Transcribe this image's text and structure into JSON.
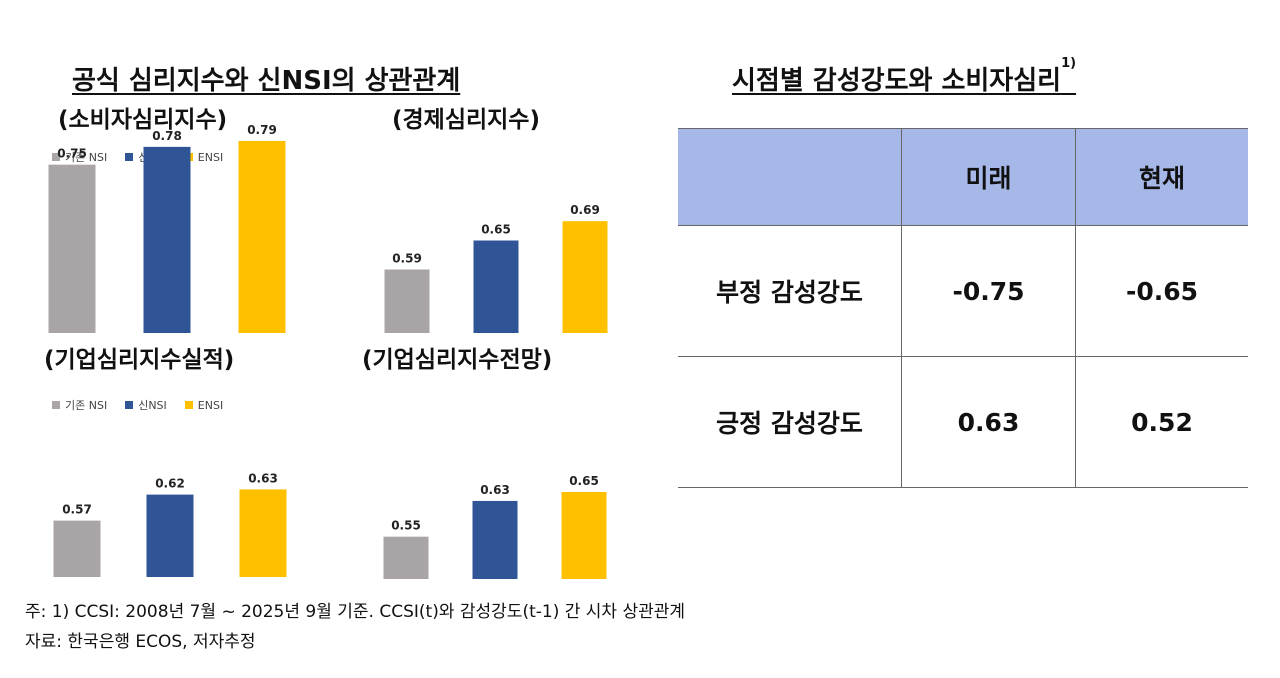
{
  "left_title": "공식 심리지수와 신NSI의 상관관계",
  "right_title": "시점별 감성강도와 소비자심리",
  "right_title_sup": "1)",
  "colors": {
    "legacy": "#a9a5a6",
    "new": "#2f5597",
    "ensi": "#ffc000",
    "header": "#a6b8e8"
  },
  "legend": [
    "기존 NSI",
    "신NSI",
    "ENSI"
  ],
  "chart_data": [
    {
      "type": "bar",
      "title": "(소비자심리지수)",
      "categories": [
        "기존 NSI",
        "신NSI",
        "ENSI"
      ],
      "values": [
        0.75,
        0.78,
        0.79
      ],
      "value_labels": [
        "0.75",
        "0.78",
        "0.79"
      ]
    },
    {
      "type": "bar",
      "title": "(경제심리지수)",
      "categories": [
        "기존 NSI",
        "신NSI",
        "ENSI"
      ],
      "values": [
        0.59,
        0.65,
        0.69
      ],
      "value_labels": [
        "0.59",
        "0.65",
        "0.69"
      ]
    },
    {
      "type": "bar",
      "title": "(기업심리지수실적)",
      "categories": [
        "기존 NSI",
        "신NSI",
        "ENSI"
      ],
      "values": [
        0.57,
        0.62,
        0.63
      ],
      "value_labels": [
        "0.57",
        "0.62",
        "0.63"
      ]
    },
    {
      "type": "bar",
      "title": "(기업심리지수전망)",
      "categories": [
        "기존 NSI",
        "신NSI",
        "ENSI"
      ],
      "values": [
        0.55,
        0.63,
        0.65
      ],
      "value_labels": [
        "0.55",
        "0.63",
        "0.65"
      ]
    }
  ],
  "table": {
    "headers": [
      "",
      "미래",
      "현재"
    ],
    "rows": [
      {
        "label": "부정 감성강도",
        "future": "-0.75",
        "present": "-0.65"
      },
      {
        "label": "긍정 감성강도",
        "future": "0.63",
        "present": "0.52"
      }
    ]
  },
  "notes": {
    "footnote": "주: 1) CCSI: 2008년 7월 ~ 2025년 9월 기준. CCSI(t)와 감성강도(t-1) 간 시차 상관관계",
    "source": "자료: 한국은행 ECOS, 저자추정"
  }
}
